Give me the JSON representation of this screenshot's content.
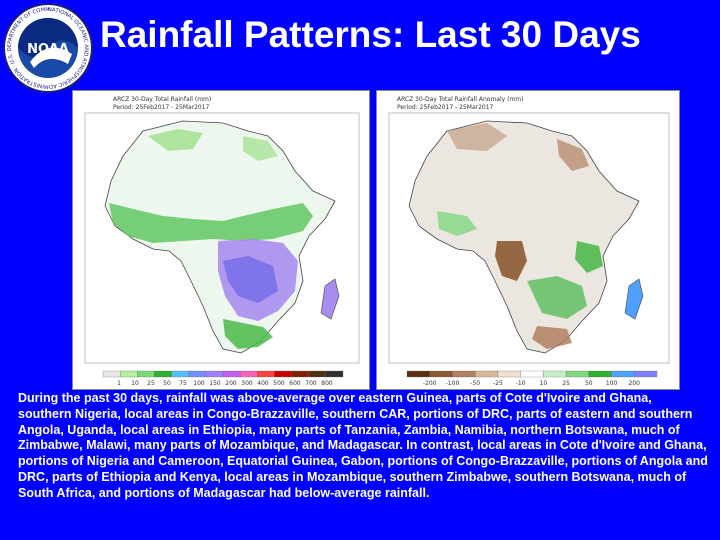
{
  "slide": {
    "title": "Rainfall Patterns: Last 30 Days",
    "caption": "During the past 30 days, rainfall was above-average over eastern Guinea, parts of Cote d'Ivoire and Ghana, southern Nigeria, local areas in Congo-Brazzaville, southern CAR, portions of DRC, parts of eastern and southern Angola, Uganda, local areas in Ethiopia, many parts of Tanzania, Zambia, Namibia, northern Botswana, much of Zimbabwe, Malawi, many parts of Mozambique, and Madagascar. In contrast, local areas in Cote d'Ivoire and Ghana, portions of Nigeria and Cameroon, Equatorial Guinea, Gabon, portions of Congo-Brazzaville, portions of Angola and DRC, parts of Ethiopia and Kenya, local areas in Mozambique, southern Zimbabwe, southern Botswana, much of South Africa, and portions of Madagascar had below-average rainfall."
  },
  "logo": {
    "text": "NOAA",
    "ring_text": "NATIONAL OCEANIC AND ATMOSPHERIC ADMINISTRATION · U.S. DEPARTMENT OF COMMERCE"
  },
  "maps": {
    "left": {
      "header": "ARCZ 30-Day Total Rainfall (mm)",
      "period": "Period: 25Feb2017 - 25Mar2017",
      "legend_ticks": [
        "1",
        "10",
        "25",
        "50",
        "75",
        "100",
        "150",
        "200",
        "300",
        "400",
        "500",
        "600",
        "700",
        "800"
      ],
      "legend_colors": [
        "#e8e8e8",
        "#b4f0a0",
        "#78d878",
        "#30b030",
        "#50c0ff",
        "#7090ff",
        "#a080ff",
        "#c060f0",
        "#ff60c0",
        "#ff4040",
        "#c80000",
        "#802000",
        "#503010",
        "#303030"
      ]
    },
    "right": {
      "header": "ARCZ 30-Day Total Rainfall Anomaly (mm)",
      "period": "Period: 25Feb2017 - 25Mar2017",
      "legend_ticks": [
        "-200",
        "-100",
        "-50",
        "-25",
        "-10",
        "10",
        "25",
        "50",
        "100",
        "200"
      ],
      "legend_colors": [
        "#5a3010",
        "#8c5a30",
        "#b08060",
        "#d8b898",
        "#f0e0d0",
        "#ffffff",
        "#c8f0c8",
        "#80d880",
        "#30b030",
        "#50a0ff",
        "#8080ff"
      ]
    }
  }
}
